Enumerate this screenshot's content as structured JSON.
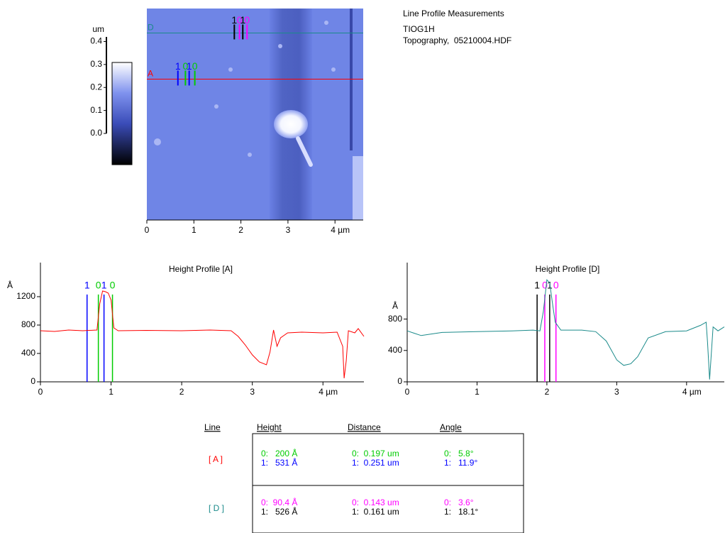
{
  "header": {
    "title": "Line Profile Measurements",
    "sample": "TIOG1H",
    "file": "Topography,  05210004.HDF"
  },
  "image": {
    "xlim": [
      0,
      4.6
    ],
    "xticks": [
      0,
      1,
      2,
      3,
      {
        "value": 4,
        "label": "4 µm"
      }
    ],
    "colorbar": {
      "label": "um",
      "ylim": [
        0,
        0.42
      ],
      "yticks": [
        {
          "value": 0,
          "label": "0.0"
        },
        0.1,
        0.2,
        0.3,
        0.4
      ]
    },
    "scan_lines": [
      {
        "label": "D",
        "color": "#1a8a8a",
        "y": 0.52,
        "cursors": [
          {
            "label": "1",
            "color": "#000000",
            "x": 1.86
          },
          {
            "label": "0",
            "color": "#ff00ff",
            "x": 1.97
          },
          {
            "label": "1",
            "color": "#000000",
            "x": 2.04
          },
          {
            "label": "0",
            "color": "#ff00ff",
            "x": 2.13
          }
        ]
      },
      {
        "label": "A",
        "color": "#ff0000",
        "y": 1.5,
        "cursors": [
          {
            "label": "1",
            "color": "#0000ff",
            "x": 0.66
          },
          {
            "label": "0",
            "color": "#00cc00",
            "x": 0.82
          },
          {
            "label": "1",
            "color": "#0000ff",
            "x": 0.9
          },
          {
            "label": "0",
            "color": "#00cc00",
            "x": 1.02
          }
        ]
      }
    ]
  },
  "chart_data": [
    {
      "type": "line",
      "title": "Height Profile [A]",
      "y_label": "Å",
      "xlim": [
        0,
        4.58
      ],
      "xticks": [
        0,
        1,
        2,
        3,
        {
          "value": 4,
          "label": "4 µm"
        }
      ],
      "ylim": [
        0,
        1680
      ],
      "yticks": [
        0,
        400,
        800,
        1200
      ],
      "series": [
        {
          "color": "#ff0000",
          "x": [
            0,
            0.2,
            0.4,
            0.6,
            0.8,
            0.84,
            0.88,
            0.92,
            0.96,
            1.0,
            1.04,
            1.1,
            1.5,
            2.0,
            2.4,
            2.7,
            2.8,
            2.9,
            3.0,
            3.1,
            3.2,
            3.25,
            3.3,
            3.35,
            3.4,
            3.5,
            3.7,
            4.0,
            4.2,
            4.28,
            4.3,
            4.33,
            4.36,
            4.45,
            4.5,
            4.58
          ],
          "values": [
            720,
            710,
            730,
            720,
            730,
            1100,
            1280,
            1270,
            1250,
            1150,
            760,
            720,
            725,
            720,
            730,
            720,
            640,
            520,
            380,
            280,
            240,
            420,
            730,
            500,
            620,
            690,
            700,
            690,
            700,
            500,
            50,
            300,
            720,
            690,
            750,
            640
          ]
        }
      ],
      "cursors": [
        {
          "label": "1",
          "color": "#0000ff",
          "x": 0.66
        },
        {
          "label": "0",
          "color": "#00cc00",
          "x": 0.82
        },
        {
          "label": "1",
          "color": "#0000ff",
          "x": 0.9
        },
        {
          "label": "0",
          "color": "#00cc00",
          "x": 1.02
        }
      ]
    },
    {
      "type": "line",
      "title": "Height Profile [D]",
      "y_label": "Å",
      "xlim": [
        0,
        4.54
      ],
      "xticks": [
        0,
        1,
        2,
        3,
        {
          "value": 4,
          "label": "4 µm"
        }
      ],
      "ylim": [
        0,
        1520
      ],
      "yticks": [
        0,
        400,
        800
      ],
      "series": [
        {
          "color": "#1a8a8a",
          "x": [
            0,
            0.1,
            0.2,
            0.5,
            1.0,
            1.5,
            1.8,
            1.9,
            1.95,
            2.0,
            2.04,
            2.08,
            2.12,
            2.2,
            2.5,
            2.7,
            2.85,
            3.0,
            3.1,
            3.2,
            3.3,
            3.45,
            3.7,
            4.0,
            4.2,
            4.28,
            4.3,
            4.33,
            4.38,
            4.45,
            4.54
          ],
          "values": [
            650,
            620,
            590,
            630,
            640,
            650,
            660,
            650,
            900,
            1300,
            1260,
            1000,
            760,
            660,
            660,
            640,
            520,
            280,
            210,
            230,
            320,
            560,
            640,
            650,
            720,
            760,
            500,
            30,
            700,
            650,
            700
          ]
        }
      ],
      "cursors": [
        {
          "label": "1",
          "color": "#000000",
          "x": 1.86
        },
        {
          "label": "0",
          "color": "#ff00ff",
          "x": 1.97
        },
        {
          "label": "1",
          "color": "#000000",
          "x": 2.04
        },
        {
          "label": "0",
          "color": "#ff00ff",
          "x": 2.13
        }
      ]
    }
  ],
  "table": {
    "columns": [
      "Line",
      "Height",
      "Distance",
      "Angle"
    ],
    "rows": [
      {
        "line": "[ A ]",
        "color": "#ff0000",
        "cells": [
          [
            {
              "text": "0:   200 Å",
              "color": "#00cc00"
            },
            {
              "text": "1:   531 Å",
              "color": "#0000ff"
            }
          ],
          [
            {
              "text": "0:  0.197 um",
              "color": "#00cc00"
            },
            {
              "text": "1:  0.251 um",
              "color": "#0000ff"
            }
          ],
          [
            {
              "text": "0:   5.8°",
              "color": "#00cc00"
            },
            {
              "text": "1:   11.9°",
              "color": "#0000ff"
            }
          ]
        ]
      },
      {
        "line": "[ D ]",
        "color": "#1a8a8a",
        "cells": [
          [
            {
              "text": "0:  90.4 Å",
              "color": "#ff00ff"
            },
            {
              "text": "1:   526 Å",
              "color": "#000000"
            }
          ],
          [
            {
              "text": "0:  0.143 um",
              "color": "#ff00ff"
            },
            {
              "text": "1:  0.161 um",
              "color": "#000000"
            }
          ],
          [
            {
              "text": "0:   3.6°",
              "color": "#ff00ff"
            },
            {
              "text": "1:   18.1°",
              "color": "#000000"
            }
          ]
        ]
      }
    ]
  }
}
